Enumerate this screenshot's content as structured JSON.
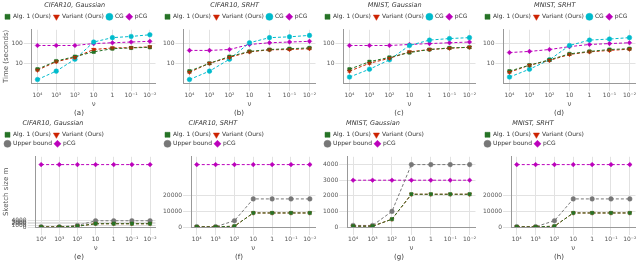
{
  "chart_data": [
    {
      "type": "line",
      "title": "CIFAR10, Gaussian",
      "annotations": [
        "(a)"
      ],
      "xlabel": "ν",
      "ylabel": "Time (seconds)",
      "x": [
        10000,
        1000,
        100,
        10,
        1,
        0.1,
        0.01
      ],
      "series": [
        {
          "name": "Alg. 1 (Ours)",
          "color": "#267326",
          "marker": "square",
          "line_style": "dashed",
          "values": [
            5,
            13,
            22,
            38,
            55,
            60,
            65
          ],
          "errors": [
            0.5,
            1.3,
            2.2,
            3.8,
            5.5,
            6,
            6.5
          ]
        },
        {
          "name": "Variant (Ours)",
          "color": "#cc2200",
          "marker": "triangle_down",
          "line_style": "dashed",
          "values": [
            4.5,
            12,
            20,
            50,
            60,
            62,
            68
          ],
          "errors": [
            0.45,
            1.2,
            2,
            5,
            6,
            6.2,
            6.8
          ]
        },
        {
          "name": "CG",
          "color": "#00bbcc",
          "marker": "circle",
          "line_style": "dashed",
          "values": [
            1.5,
            4,
            16,
            120,
            200,
            230,
            280
          ]
        },
        {
          "name": "pCG",
          "color": "#bb00bb",
          "marker": "diamond",
          "line_style": "dashed",
          "values": [
            80,
            80,
            80,
            100,
            110,
            120,
            130
          ]
        }
      ],
      "log": true,
      "xlim": [
        20000,
        0.005
      ],
      "xticks": [
        {
          "value": 10000,
          "label": "10⁴"
        },
        {
          "value": 1000,
          "label": "10³"
        },
        {
          "value": 100,
          "label": "10²"
        },
        10,
        1,
        {
          "value": 0.1,
          "label": "10⁻¹"
        },
        {
          "value": 0.01,
          "label": "10⁻²"
        }
      ],
      "ylim": [
        1,
        500
      ],
      "yticks": [
        10,
        100
      ],
      "grid": true,
      "legend": "upper left"
    },
    {
      "type": "line",
      "title": "CIFAR10, SRHT",
      "annotations": [
        "(b)"
      ],
      "xlabel": "ν",
      "x": [
        10000,
        1000,
        100,
        10,
        1,
        0.1,
        0.01
      ],
      "series": [
        {
          "name": "Alg. 1 (Ours)",
          "color": "#267326",
          "marker": "square",
          "line_style": "dashed",
          "values": [
            4,
            10,
            22,
            40,
            50,
            55,
            60
          ],
          "errors": [
            0.4,
            1,
            2.2,
            4,
            5,
            5.5,
            6
          ]
        },
        {
          "name": "Variant (Ours)",
          "color": "#cc2200",
          "marker": "triangle_down",
          "line_style": "dashed",
          "values": [
            3.5,
            10,
            20,
            38,
            48,
            50,
            55
          ],
          "errors": [
            0.35,
            1,
            2,
            3.8,
            4.8,
            5,
            5.5
          ]
        },
        {
          "name": "CG",
          "color": "#00bbcc",
          "marker": "circle",
          "line_style": "dashed",
          "values": [
            1.5,
            4,
            16,
            110,
            200,
            220,
            260
          ]
        },
        {
          "name": "pCG",
          "color": "#bb00bb",
          "marker": "diamond",
          "line_style": "dashed",
          "values": [
            45,
            45,
            50,
            90,
            110,
            120,
            130
          ]
        }
      ],
      "log": true,
      "xlim": [
        20000,
        0.005
      ],
      "xticks": [
        {
          "value": 10000,
          "label": "10⁴"
        },
        {
          "value": 1000,
          "label": "10³"
        },
        {
          "value": 100,
          "label": "10²"
        },
        10,
        1,
        {
          "value": 0.1,
          "label": "10⁻¹"
        },
        {
          "value": 0.01,
          "label": "10⁻²"
        }
      ],
      "ylim": [
        1,
        500
      ],
      "yticks": [
        10,
        100
      ],
      "grid": true,
      "legend": "upper left"
    },
    {
      "type": "line",
      "title": "MNIST, Gaussian",
      "annotations": [
        "(c)"
      ],
      "xlabel": "ν",
      "x": [
        10000,
        1000,
        100,
        10,
        1,
        0.1,
        0.01
      ],
      "series": [
        {
          "name": "Alg. 1 (Ours)",
          "color": "#267326",
          "marker": "square",
          "line_style": "dashed",
          "values": [
            5,
            12,
            20,
            35,
            50,
            60,
            65
          ],
          "errors": [
            0.5,
            1.2,
            2,
            3.5,
            5,
            6,
            6.5
          ]
        },
        {
          "name": "Variant (Ours)",
          "color": "#cc2200",
          "marker": "triangle_down",
          "line_style": "dashed",
          "values": [
            4,
            10,
            18,
            38,
            50,
            58,
            65
          ],
          "errors": [
            0.4,
            1,
            1.8,
            3.8,
            5,
            5.8,
            6.5
          ]
        },
        {
          "name": "CG",
          "color": "#00bbcc",
          "marker": "circle",
          "line_style": "dashed",
          "values": [
            2,
            5,
            15,
            80,
            150,
            180,
            200
          ]
        },
        {
          "name": "pCG",
          "color": "#bb00bb",
          "marker": "diamond",
          "line_style": "dashed",
          "values": [
            80,
            80,
            80,
            90,
            100,
            110,
            120
          ]
        }
      ],
      "log": true,
      "xlim": [
        20000,
        0.005
      ],
      "xticks": [
        {
          "value": 10000,
          "label": "10⁴"
        },
        {
          "value": 1000,
          "label": "10³"
        },
        {
          "value": 100,
          "label": "10²"
        },
        10,
        1,
        {
          "value": 0.1,
          "label": "10⁻¹"
        },
        {
          "value": 0.01,
          "label": "10⁻²"
        }
      ],
      "ylim": [
        1,
        500
      ],
      "yticks": [
        10,
        100
      ],
      "grid": true,
      "legend": "upper left"
    },
    {
      "type": "line",
      "title": "MNIST, SRHT",
      "annotations": [
        "(d)"
      ],
      "xlabel": "ν",
      "x": [
        10000,
        1000,
        100,
        10,
        1,
        0.1,
        0.01
      ],
      "series": [
        {
          "name": "Alg. 1 (Ours)",
          "color": "#267326",
          "marker": "square",
          "line_style": "dashed",
          "values": [
            4,
            8,
            15,
            30,
            40,
            50,
            55
          ],
          "errors": [
            0.4,
            0.8,
            1.5,
            3,
            4,
            5,
            5.5
          ]
        },
        {
          "name": "Variant (Ours)",
          "color": "#cc2200",
          "marker": "triangle_down",
          "line_style": "dashed",
          "values": [
            3.5,
            8,
            14,
            28,
            38,
            45,
            52
          ],
          "errors": [
            0.35,
            0.8,
            1.4,
            2.8,
            3.8,
            4.5,
            5.2
          ]
        },
        {
          "name": "CG",
          "color": "#00bbcc",
          "marker": "circle",
          "line_style": "dashed",
          "values": [
            2,
            5,
            15,
            80,
            150,
            170,
            200
          ]
        },
        {
          "name": "pCG",
          "color": "#bb00bb",
          "marker": "diamond",
          "line_style": "dashed",
          "values": [
            35,
            40,
            50,
            70,
            90,
            100,
            110
          ]
        }
      ],
      "log": true,
      "xlim": [
        20000,
        0.005
      ],
      "xticks": [
        {
          "value": 10000,
          "label": "10⁴"
        },
        {
          "value": 1000,
          "label": "10³"
        },
        {
          "value": 100,
          "label": "10²"
        },
        10,
        1,
        {
          "value": 0.1,
          "label": "10⁻¹"
        },
        {
          "value": 0.01,
          "label": "10⁻²"
        }
      ],
      "ylim": [
        1,
        500
      ],
      "yticks": [
        10,
        100
      ],
      "grid": true,
      "legend": "upper left"
    },
    {
      "type": "line",
      "title": "CIFAR10, Gaussian",
      "annotations": [
        "(e)"
      ],
      "xlabel": "ν",
      "ylabel": "Sketch size m",
      "x": [
        10000,
        1000,
        100,
        10,
        1,
        0.1,
        0.01
      ],
      "series": [
        {
          "name": "Alg. 1 (Ours)",
          "color": "#267326",
          "marker": "square",
          "line_style": "dashed",
          "values": [
            50,
            50,
            500,
            2100,
            2100,
            2100,
            2100
          ]
        },
        {
          "name": "Variant (Ours)",
          "color": "#cc2200",
          "marker": "triangle_down",
          "line_style": "dashed",
          "values": [
            50,
            50,
            500,
            2100,
            2100,
            2100,
            2100
          ]
        },
        {
          "name": "Upper bound",
          "color": "#777777",
          "marker": "circle",
          "line_style": "dashed",
          "values": [
            100,
            100,
            1000,
            4000,
            4000,
            4000,
            4000
          ]
        },
        {
          "name": "pCG",
          "color": "#bb00bb",
          "marker": "diamond",
          "line_style": "dashed",
          "values": [
            40000,
            40000,
            40000,
            40000,
            40000,
            40000,
            40000
          ]
        }
      ],
      "log": "x",
      "xlim": [
        20000,
        0.005
      ],
      "xticks": [
        {
          "value": 10000,
          "label": "10⁴"
        },
        {
          "value": 1000,
          "label": "10³"
        },
        {
          "value": 100,
          "label": "10²"
        },
        10,
        1,
        {
          "value": 0.1,
          "label": "10⁻¹"
        },
        {
          "value": 0.01,
          "label": "10⁻²"
        }
      ],
      "ylim": [
        0,
        45000
      ],
      "yticks": [
        0,
        1000,
        2000,
        3000,
        4000
      ],
      "grid": true,
      "legend": "upper left"
    },
    {
      "type": "line",
      "title": "CIFAR10, SRHT",
      "annotations": [
        "(f)"
      ],
      "xlabel": "ν",
      "x": [
        10000,
        1000,
        100,
        10,
        1,
        0.1,
        0.01
      ],
      "series": [
        {
          "name": "Alg. 1 (Ours)",
          "color": "#267326",
          "marker": "square",
          "line_style": "dashed",
          "values": [
            100,
            100,
            500,
            9000,
            9000,
            9000,
            9000
          ]
        },
        {
          "name": "Variant (Ours)",
          "color": "#cc2200",
          "marker": "triangle_down",
          "line_style": "dashed",
          "values": [
            100,
            100,
            500,
            9000,
            9000,
            9000,
            9000
          ]
        },
        {
          "name": "Upper bound",
          "color": "#777777",
          "marker": "circle",
          "line_style": "dashed",
          "values": [
            200,
            200,
            4000,
            18000,
            18000,
            18000,
            18000
          ]
        },
        {
          "name": "pCG",
          "color": "#bb00bb",
          "marker": "diamond",
          "line_style": "dashed",
          "values": [
            40000,
            40000,
            40000,
            40000,
            40000,
            40000,
            40000
          ]
        }
      ],
      "log": "x",
      "xlim": [
        20000,
        0.005
      ],
      "xticks": [
        {
          "value": 10000,
          "label": "10⁴"
        },
        {
          "value": 1000,
          "label": "10³"
        },
        {
          "value": 100,
          "label": "10²"
        },
        10,
        1,
        {
          "value": 0.1,
          "label": "10⁻¹"
        },
        {
          "value": 0.01,
          "label": "10⁻²"
        }
      ],
      "ylim": [
        0,
        45000
      ],
      "yticks": [
        0,
        10000,
        20000
      ],
      "grid": true,
      "legend": "upper left"
    },
    {
      "type": "line",
      "title": "MNIST, Gaussian",
      "annotations": [
        "(g)"
      ],
      "xlabel": "ν",
      "x": [
        10000,
        1000,
        100,
        10,
        1,
        0.1,
        0.01
      ],
      "series": [
        {
          "name": "Alg. 1 (Ours)",
          "color": "#267326",
          "marker": "square",
          "line_style": "dashed",
          "values": [
            50,
            50,
            500,
            2100,
            2100,
            2100,
            2100
          ]
        },
        {
          "name": "Variant (Ours)",
          "color": "#cc2200",
          "marker": "triangle_down",
          "line_style": "dashed",
          "values": [
            50,
            50,
            500,
            2100,
            2100,
            2100,
            2100
          ]
        },
        {
          "name": "Upper bound",
          "color": "#777777",
          "marker": "circle",
          "line_style": "dashed",
          "values": [
            100,
            100,
            1000,
            4000,
            4000,
            4000,
            4000
          ]
        },
        {
          "name": "pCG",
          "color": "#bb00bb",
          "marker": "diamond",
          "line_style": "dashed",
          "values": [
            3000,
            3000,
            3000,
            3000,
            3000,
            3000,
            3000
          ]
        }
      ],
      "log": "x",
      "xlim": [
        20000,
        0.005
      ],
      "xticks": [
        {
          "value": 10000,
          "label": "10⁴"
        },
        {
          "value": 1000,
          "label": "10³"
        },
        {
          "value": 100,
          "label": "10²"
        },
        10,
        1,
        {
          "value": 0.1,
          "label": "10⁻¹"
        },
        {
          "value": 0.01,
          "label": "10⁻²"
        }
      ],
      "ylim": [
        0,
        4500
      ],
      "yticks": [
        0,
        1000,
        2000,
        3000,
        4000
      ],
      "grid": true,
      "legend": "upper left"
    },
    {
      "type": "line",
      "title": "MNIST, SRHT",
      "annotations": [
        "(h)"
      ],
      "xlabel": "ν",
      "x": [
        10000,
        1000,
        100,
        10,
        1,
        0.1,
        0.01
      ],
      "series": [
        {
          "name": "Alg. 1 (Ours)",
          "color": "#267326",
          "marker": "square",
          "line_style": "dashed",
          "values": [
            100,
            100,
            500,
            9000,
            9000,
            9000,
            9000
          ]
        },
        {
          "name": "Variant (Ours)",
          "color": "#cc2200",
          "marker": "triangle_down",
          "line_style": "dashed",
          "values": [
            100,
            100,
            500,
            9000,
            9000,
            9000,
            9000
          ]
        },
        {
          "name": "Upper bound",
          "color": "#777777",
          "marker": "circle",
          "line_style": "dashed",
          "values": [
            200,
            200,
            4000,
            18000,
            18000,
            18000,
            18000
          ]
        },
        {
          "name": "pCG",
          "color": "#bb00bb",
          "marker": "diamond",
          "line_style": "dashed",
          "values": [
            40000,
            40000,
            40000,
            40000,
            40000,
            40000,
            40000
          ]
        }
      ],
      "log": "x",
      "xlim": [
        20000,
        0.005
      ],
      "xticks": [
        {
          "value": 10000,
          "label": "10⁴"
        },
        {
          "value": 1000,
          "label": "10³"
        },
        {
          "value": 100,
          "label": "10²"
        },
        10,
        1,
        {
          "value": 0.1,
          "label": "10⁻¹"
        },
        {
          "value": 0.01,
          "label": "10⁻²"
        }
      ],
      "ylim": [
        0,
        45000
      ],
      "yticks": [
        0,
        10000,
        20000
      ],
      "grid": true,
      "legend": "upper left"
    }
  ]
}
